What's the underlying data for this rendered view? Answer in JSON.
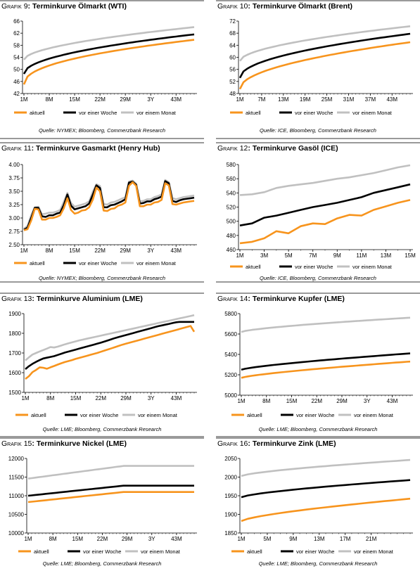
{
  "legend": {
    "aktuell": "aktuell",
    "woche": "vor einer Woche",
    "monat": "vor einem Monat"
  },
  "colors": {
    "aktuell": "#f7941d",
    "woche": "#000000",
    "monat": "#c0c0c0",
    "frame": "#9a9a9a"
  },
  "charts": [
    {
      "prefix": "Grafik 9",
      "title": "Terminkurve Ölmarkt (WTI)",
      "source": "Quelle: NYMEX; Bloomberg, Commerzbank Research"
    },
    {
      "prefix": "Grafik 10",
      "title": "Terminkurve Ölmarkt (Brent)",
      "source": "Quelle: ICE, Bloomberg, Commerzbank Research"
    },
    {
      "prefix": "Grafik 11",
      "title": "Terminkurve Gasmarkt (Henry Hub)",
      "source": "Quelle: NYMEX; Bloomberg, Commerzbank Research"
    },
    {
      "prefix": "Grafik 12",
      "title": "Terminkurve Gasöl (ICE)",
      "source": "Quelle: ICE, Bloomberg, Commerzbank Research"
    },
    {
      "prefix": "Grafik 13",
      "title": "Terminkurve Aluminium (LME)",
      "source": "Quelle: LME; Bloomberg, Commerzbank Research"
    },
    {
      "prefix": "Grafik 14",
      "title": "Terminkurve Kupfer (LME)",
      "source": "Quelle: LME; Bloomberg, Commerzbank Research"
    },
    {
      "prefix": "Grafik 15",
      "title": "Terminkurve Nickel (LME)",
      "source": "Quelle: LME; Bloomberg, Commerzbank Research"
    },
    {
      "prefix": "Grafik 16",
      "title": "Terminkurve Zink (LME)",
      "source": "Quelle: LME; Bloomberg, Commerzbank Research"
    }
  ],
  "chart_data": [
    {
      "type": "line",
      "title": "Terminkurve Ölmarkt (WTI)",
      "x": [
        "1M",
        "2M",
        "3M",
        "4M",
        "5M",
        "6M",
        "7M",
        "8M",
        "9M",
        "10M",
        "11M",
        "12M",
        "13M",
        "14M",
        "15M",
        "16M",
        "17M",
        "18M",
        "19M",
        "20M",
        "21M",
        "22M",
        "23M",
        "24M",
        "25M",
        "26M",
        "27M",
        "28M",
        "29M",
        "30M",
        "31M",
        "32M",
        "33M",
        "34M",
        "35M",
        "36M",
        "37M",
        "38M",
        "39M",
        "40M",
        "41M",
        "42M",
        "43M",
        "44M",
        "45M",
        "46M",
        "47M",
        "48M"
      ],
      "xticks": [
        "1M",
        "8M",
        "15M",
        "22M",
        "29M",
        "3Y",
        "43M"
      ],
      "ylim": [
        42,
        66
      ],
      "yticks": [
        42,
        46,
        50,
        54,
        58,
        62,
        66
      ],
      "grid": false,
      "legend": "bottom",
      "series": [
        {
          "name": "aktuell",
          "start": 45.0,
          "end": 59.8,
          "shape": 0.45,
          "noise": 0.0
        },
        {
          "name": "vor einer Woche",
          "start": 48.5,
          "end": 61.6,
          "shape": 0.5,
          "noise": 0.0
        },
        {
          "name": "vor einem Monat",
          "start": 53.2,
          "end": 64.0,
          "shape": 0.55,
          "noise": 0.0
        }
      ]
    },
    {
      "type": "line",
      "title": "Terminkurve Ölmarkt (Brent)",
      "x": [
        "1M",
        "2M",
        "3M",
        "4M",
        "5M",
        "6M",
        "7M",
        "8M",
        "9M",
        "10M",
        "11M",
        "12M",
        "13M",
        "14M",
        "15M",
        "16M",
        "17M",
        "18M",
        "19M",
        "20M",
        "21M",
        "22M",
        "23M",
        "24M",
        "25M",
        "26M",
        "27M",
        "28M",
        "29M",
        "30M",
        "31M",
        "32M",
        "33M",
        "34M",
        "35M",
        "36M",
        "37M",
        "38M",
        "39M",
        "40M",
        "41M",
        "42M",
        "43M",
        "44M",
        "45M",
        "46M",
        "47M",
        "48M"
      ],
      "xticks": [
        "1M",
        "7M",
        "13M",
        "19M",
        "25M",
        "31M",
        "37M",
        "43M"
      ],
      "ylim": [
        48,
        72
      ],
      "yticks": [
        48,
        52,
        56,
        60,
        64,
        68,
        72
      ],
      "grid": false,
      "legend": "bottom",
      "series": [
        {
          "name": "aktuell",
          "start": 49.5,
          "end": 65.0,
          "shape": 0.5,
          "noise": 0.0
        },
        {
          "name": "vor einer Woche",
          "start": 53.2,
          "end": 67.8,
          "shape": 0.5,
          "noise": 0.0
        },
        {
          "name": "vor einem Monat",
          "start": 58.8,
          "end": 70.3,
          "shape": 0.55,
          "noise": 0.0
        }
      ]
    },
    {
      "type": "line",
      "title": "Terminkurve Gasmarkt (Henry Hub)",
      "x": [
        "1M",
        "2M",
        "3M",
        "4M",
        "5M",
        "6M",
        "7M",
        "8M",
        "9M",
        "10M",
        "11M",
        "12M",
        "13M",
        "14M",
        "15M",
        "16M",
        "17M",
        "18M",
        "19M",
        "20M",
        "21M",
        "22M",
        "23M",
        "24M",
        "25M",
        "26M",
        "27M",
        "28M",
        "29M",
        "30M",
        "31M",
        "32M",
        "33M",
        "34M",
        "35M",
        "36M",
        "37M",
        "38M",
        "39M",
        "40M",
        "41M",
        "42M",
        "43M",
        "44M",
        "45M",
        "46M",
        "47M",
        "48M"
      ],
      "xticks": [
        "1M",
        "8M",
        "15M",
        "22M",
        "29M",
        "3Y",
        "43M"
      ],
      "ylim": [
        2.5,
        4.0
      ],
      "yticks": [
        2.5,
        2.75,
        3.0,
        3.25,
        3.5,
        3.75,
        4.0
      ],
      "ydec": 2,
      "grid": false,
      "legend": "bottom",
      "series": [
        {
          "name": "aktuell",
          "values": [
            2.77,
            2.79,
            2.95,
            3.17,
            3.16,
            2.97,
            2.97,
            3.0,
            3.0,
            3.02,
            3.05,
            3.18,
            3.37,
            3.15,
            3.08,
            3.1,
            3.14,
            3.15,
            3.2,
            3.34,
            3.57,
            3.5,
            3.14,
            3.13,
            3.17,
            3.18,
            3.23,
            3.25,
            3.29,
            3.6,
            3.67,
            3.6,
            3.22,
            3.22,
            3.25,
            3.25,
            3.29,
            3.3,
            3.34,
            3.65,
            3.61,
            3.26,
            3.25,
            3.27,
            3.29,
            3.3,
            3.31,
            3.32
          ]
        },
        {
          "name": "vor einer Woche",
          "values": [
            2.78,
            2.82,
            3.0,
            3.19,
            3.19,
            3.03,
            3.02,
            3.05,
            3.05,
            3.08,
            3.1,
            3.24,
            3.44,
            3.23,
            3.16,
            3.18,
            3.2,
            3.22,
            3.27,
            3.43,
            3.61,
            3.56,
            3.2,
            3.2,
            3.24,
            3.25,
            3.28,
            3.31,
            3.35,
            3.66,
            3.68,
            3.62,
            3.27,
            3.28,
            3.31,
            3.31,
            3.35,
            3.37,
            3.4,
            3.69,
            3.65,
            3.32,
            3.3,
            3.33,
            3.35,
            3.36,
            3.37,
            3.38
          ]
        },
        {
          "name": "vor einem Monat",
          "values": [
            2.8,
            2.85,
            3.05,
            3.2,
            3.21,
            3.07,
            3.08,
            3.1,
            3.1,
            3.12,
            3.15,
            3.3,
            3.47,
            3.28,
            3.21,
            3.23,
            3.25,
            3.27,
            3.31,
            3.49,
            3.63,
            3.6,
            3.26,
            3.25,
            3.29,
            3.3,
            3.33,
            3.36,
            3.39,
            3.68,
            3.7,
            3.64,
            3.31,
            3.32,
            3.35,
            3.35,
            3.39,
            3.41,
            3.44,
            3.71,
            3.67,
            3.37,
            3.35,
            3.37,
            3.39,
            3.4,
            3.41,
            3.42
          ]
        }
      ]
    },
    {
      "type": "line",
      "title": "Terminkurve Gasöl (ICE)",
      "x": [
        "1M",
        "2M",
        "3M",
        "4M",
        "5M",
        "6M",
        "7M",
        "8M",
        "9M",
        "10M",
        "11M",
        "12M",
        "13M",
        "14M",
        "15M"
      ],
      "xticks": [
        "1M",
        "3M",
        "5M",
        "7M",
        "9M",
        "11M",
        "13M",
        "15M"
      ],
      "ylim": [
        460,
        580
      ],
      "yticks": [
        460,
        480,
        500,
        520,
        540,
        560,
        580
      ],
      "grid": false,
      "legend": "bottom",
      "series": [
        {
          "name": "aktuell",
          "values": [
            469,
            471,
            476,
            486,
            483,
            493,
            497,
            496,
            504,
            509,
            508,
            516,
            521,
            526,
            530
          ]
        },
        {
          "name": "vor einer Woche",
          "values": [
            494,
            497,
            505,
            508,
            512,
            516,
            520,
            523,
            526,
            530,
            534,
            540,
            544,
            548,
            552
          ]
        },
        {
          "name": "vor einem Monat",
          "values": [
            537,
            538,
            541,
            547,
            550,
            552,
            554,
            557,
            560,
            562,
            565,
            568,
            572,
            576,
            579
          ]
        }
      ]
    },
    {
      "type": "line",
      "title": "Terminkurve Aluminium (LME)",
      "x": [
        "1M",
        "2M",
        "3M",
        "4M",
        "5M",
        "6M",
        "7M",
        "8M",
        "9M",
        "10M",
        "11M",
        "12M",
        "13M",
        "14M",
        "15M",
        "16M",
        "17M",
        "18M",
        "19M",
        "20M",
        "21M",
        "22M",
        "23M",
        "24M",
        "25M",
        "26M",
        "27M",
        "28M",
        "29M",
        "30M",
        "31M",
        "32M",
        "33M",
        "34M",
        "35M",
        "36M",
        "37M",
        "38M",
        "39M",
        "40M",
        "41M",
        "42M",
        "43M",
        "44M",
        "45M",
        "46M",
        "47M",
        "48M"
      ],
      "xticks": [
        "1M",
        "8M",
        "15M",
        "22M",
        "29M",
        "3Y",
        "43M"
      ],
      "ylim": [
        1500,
        1900
      ],
      "yticks": [
        1500,
        1600,
        1700,
        1800,
        1900
      ],
      "grid": false,
      "legend": "bottom",
      "series": [
        {
          "name": "aktuell",
          "values": [
            1568,
            1582,
            1603,
            1614,
            1627,
            1625,
            1620,
            1627,
            1634,
            1641,
            1648,
            1654,
            1659,
            1664,
            1670,
            1675,
            1680,
            1685,
            1690,
            1695,
            1700,
            1706,
            1712,
            1718,
            1724,
            1730,
            1736,
            1742,
            1747,
            1752,
            1757,
            1762,
            1767,
            1772,
            1777,
            1782,
            1787,
            1792,
            1797,
            1802,
            1807,
            1812,
            1817,
            1822,
            1827,
            1832,
            1837,
            1808
          ]
        },
        {
          "name": "vor einer Woche",
          "values": [
            1618,
            1633,
            1645,
            1655,
            1664,
            1672,
            1676,
            1680,
            1684,
            1690,
            1696,
            1702,
            1707,
            1712,
            1717,
            1722,
            1727,
            1732,
            1737,
            1742,
            1747,
            1752,
            1758,
            1764,
            1770,
            1776,
            1781,
            1786,
            1791,
            1796,
            1801,
            1806,
            1811,
            1816,
            1821,
            1826,
            1831,
            1836,
            1840,
            1844,
            1848,
            1852,
            1856,
            1858,
            1858,
            1858,
            1858,
            1858
          ]
        },
        {
          "name": "vor einem Monat",
          "values": [
            1662,
            1678,
            1692,
            1700,
            1708,
            1715,
            1722,
            1730,
            1728,
            1732,
            1738,
            1744,
            1749,
            1754,
            1759,
            1764,
            1768,
            1772,
            1776,
            1780,
            1784,
            1788,
            1792,
            1796,
            1800,
            1804,
            1808,
            1812,
            1816,
            1820,
            1824,
            1828,
            1832,
            1836,
            1840,
            1844,
            1848,
            1852,
            1856,
            1860,
            1864,
            1868,
            1872,
            1876,
            1880,
            1884,
            1888,
            1892
          ]
        }
      ]
    },
    {
      "type": "line",
      "title": "Terminkurve Kupfer (LME)",
      "x": [
        "1M",
        "2M",
        "3M",
        "4M",
        "5M",
        "6M",
        "7M",
        "8M",
        "9M",
        "10M",
        "11M",
        "12M",
        "13M",
        "14M",
        "15M",
        "16M",
        "17M",
        "18M",
        "19M",
        "20M",
        "21M",
        "22M",
        "23M",
        "24M",
        "25M",
        "26M",
        "27M",
        "28M",
        "29M",
        "30M",
        "31M",
        "32M",
        "33M",
        "34M",
        "35M",
        "36M",
        "37M",
        "38M",
        "39M",
        "40M",
        "41M",
        "42M",
        "43M",
        "44M",
        "45M",
        "46M",
        "47M",
        "48M"
      ],
      "xticks": [
        "1M",
        "8M",
        "15M",
        "22M",
        "29M",
        "3Y",
        "43M"
      ],
      "ylim": [
        5000,
        5800
      ],
      "yticks": [
        5000,
        5200,
        5400,
        5600,
        5800
      ],
      "grid": false,
      "legend": "bottom",
      "series": [
        {
          "name": "aktuell",
          "start": 5170,
          "end": 5330,
          "shape": 0.75,
          "noise": 0.0
        },
        {
          "name": "vor einer Woche",
          "start": 5250,
          "end": 5410,
          "shape": 0.75,
          "noise": 0.0
        },
        {
          "name": "vor einem Monat",
          "start": 5620,
          "end": 5760,
          "shape": 0.7,
          "noise": 0.0
        }
      ]
    },
    {
      "type": "line",
      "title": "Terminkurve Nickel (LME)",
      "x": [
        "1M",
        "2M",
        "3M",
        "4M",
        "5M",
        "6M",
        "7M",
        "8M",
        "9M",
        "10M",
        "11M",
        "12M",
        "13M",
        "14M",
        "15M",
        "16M",
        "17M",
        "18M",
        "19M",
        "20M",
        "21M",
        "22M",
        "23M",
        "24M",
        "25M",
        "26M",
        "27M",
        "28M",
        "29M",
        "30M",
        "31M",
        "32M",
        "33M",
        "34M",
        "35M",
        "36M",
        "37M",
        "38M",
        "39M",
        "40M",
        "41M",
        "42M",
        "43M",
        "44M",
        "45M",
        "46M",
        "47M",
        "48M"
      ],
      "xticks": [
        "1M",
        "8M",
        "15M",
        "22M",
        "29M",
        "3Y",
        "43M"
      ],
      "ylim": [
        10000,
        12000
      ],
      "yticks": [
        10000,
        10500,
        11000,
        11500,
        12000
      ],
      "grid": false,
      "legend": "bottom",
      "series": [
        {
          "name": "aktuell",
          "plateau": 27,
          "start": 10830,
          "end": 11100
        },
        {
          "name": "vor einer Woche",
          "plateau": 27,
          "start": 11000,
          "end": 11270
        },
        {
          "name": "vor einem Monat",
          "plateau": 27,
          "start": 11460,
          "end": 11800
        }
      ]
    },
    {
      "type": "line",
      "title": "Terminkurve Zink (LME)",
      "x": [
        "1M",
        "2M",
        "3M",
        "4M",
        "5M",
        "6M",
        "7M",
        "8M",
        "9M",
        "10M",
        "11M",
        "12M",
        "13M",
        "14M",
        "15M",
        "16M",
        "17M",
        "18M",
        "19M",
        "20M",
        "21M",
        "22M",
        "23M",
        "24M",
        "25M",
        "26M",
        "27M"
      ],
      "xticks": [
        "1M",
        "5M",
        "9M",
        "13M",
        "17M",
        "21M"
      ],
      "ylim": [
        1850,
        2050
      ],
      "yticks": [
        1850,
        1900,
        1950,
        2000,
        2050
      ],
      "grid": false,
      "legend": "bottom",
      "series": [
        {
          "name": "aktuell",
          "start": 1882,
          "end": 1942,
          "shape": 0.7,
          "noise": 0.0
        },
        {
          "name": "vor einer Woche",
          "start": 1946,
          "end": 1992,
          "shape": 0.7,
          "noise": 0.0
        },
        {
          "name": "vor einem Monat",
          "start": 2003,
          "end": 2046,
          "shape": 0.7,
          "noise": 0.0
        }
      ]
    }
  ]
}
